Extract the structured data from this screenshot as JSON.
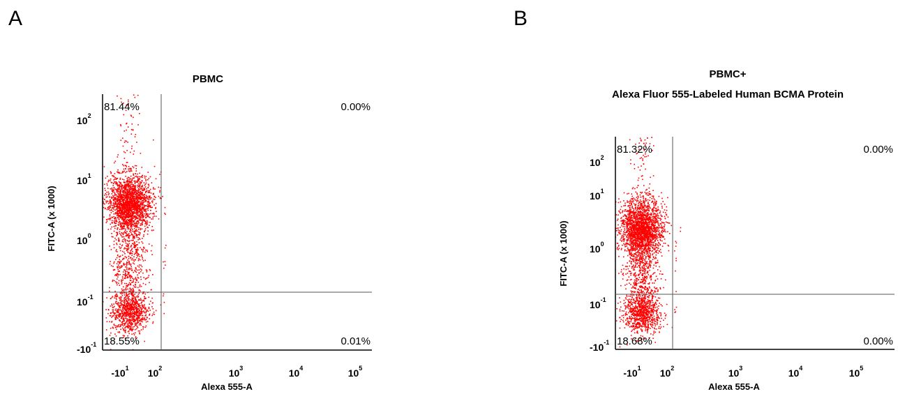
{
  "panels": [
    {
      "letter": "A",
      "title_lines": [
        "PBMC"
      ],
      "xlabel": "Alexa 555-A",
      "ylabel": "FITC-A (x 1000)",
      "quadrants": {
        "upper_left": "81.44%",
        "upper_right": "0.00%",
        "lower_left": "18.55%",
        "lower_right": "0.01%"
      }
    },
    {
      "letter": "B",
      "title_lines": [
        "PBMC+",
        "Alexa Fluor 555-Labeled Human BCMA Protein"
      ],
      "xlabel": "Alexa 555-A",
      "ylabel": "FITC-A (x 1000)",
      "quadrants": {
        "upper_left": "81.32%",
        "upper_right": "0.00%",
        "lower_left": "18.68%",
        "lower_right": "0.00%"
      }
    }
  ],
  "axis_ticks": {
    "x": [
      {
        "base": "-10",
        "exp": "1"
      },
      {
        "base": "10",
        "exp": "2"
      },
      {
        "base": "10",
        "exp": "3"
      },
      {
        "base": "10",
        "exp": "4"
      },
      {
        "base": "10",
        "exp": "5"
      }
    ],
    "y": [
      {
        "base": "10",
        "exp": "2"
      },
      {
        "base": "10",
        "exp": "1"
      },
      {
        "base": "10",
        "exp": "0"
      },
      {
        "base": "10",
        "exp": "-1"
      },
      {
        "base": "-10",
        "exp": "-1"
      }
    ]
  },
  "chart_data": [
    {
      "type": "scatter",
      "title": "PBMC",
      "xlabel": "Alexa 555-A",
      "ylabel": "FITC-A (x 1000)",
      "x_scale": "biexponential",
      "y_scale": "biexponential",
      "point_color": "#ff0000",
      "gate_lines_color": "#555555",
      "populations": [
        {
          "x_center": 1,
          "y_center": 3,
          "spread": "dense"
        },
        {
          "x_center": 1,
          "y_center": 0.05,
          "spread": "dense"
        }
      ],
      "quadrant_percentages": {
        "upper_left": 81.44,
        "upper_right": 0.0,
        "lower_left": 18.55,
        "lower_right": 0.01
      }
    },
    {
      "type": "scatter",
      "title": "PBMC+ Alexa Fluor 555-Labeled Human BCMA Protein",
      "xlabel": "Alexa 555-A",
      "ylabel": "FITC-A (x 1000)",
      "x_scale": "biexponential",
      "y_scale": "biexponential",
      "point_color": "#ff0000",
      "gate_lines_color": "#555555",
      "populations": [
        {
          "x_center": 1,
          "y_center": 3,
          "spread": "dense"
        },
        {
          "x_center": 1,
          "y_center": 0.05,
          "spread": "dense"
        }
      ],
      "quadrant_percentages": {
        "upper_left": 81.32,
        "upper_right": 0.0,
        "lower_left": 18.68,
        "lower_right": 0.0
      }
    }
  ]
}
